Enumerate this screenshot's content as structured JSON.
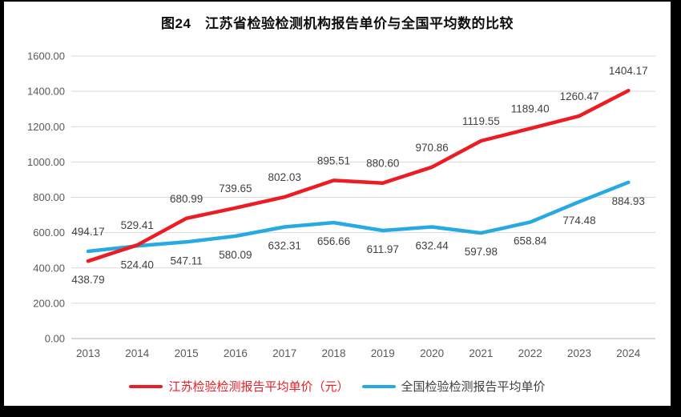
{
  "chart_data": {
    "type": "line",
    "title": "图24　江苏省检验检测机构报告单价与全国平均数的比较",
    "categories": [
      "2013",
      "2014",
      "2015",
      "2016",
      "2017",
      "2018",
      "2019",
      "2020",
      "2021",
      "2022",
      "2023",
      "2024"
    ],
    "series": [
      {
        "name": "江苏检验检测报告平均单价（元）",
        "color": "#ec1c24",
        "values": [
          438.79,
          529.41,
          680.99,
          739.65,
          802.03,
          895.51,
          880.6,
          970.86,
          1119.55,
          1189.4,
          1260.47,
          1404.17
        ],
        "label_sides": [
          "below",
          "above",
          "above",
          "above",
          "above",
          "above",
          "above",
          "above",
          "above",
          "above",
          "above",
          "above"
        ],
        "legend_text_color": "#ec1c24"
      },
      {
        "name": "全国检验检测报告平均单价",
        "color": "#27a9e1",
        "values": [
          494.17,
          524.4,
          547.11,
          580.09,
          632.31,
          656.66,
          611.97,
          632.44,
          597.98,
          658.84,
          774.48,
          884.93
        ],
        "label_sides": [
          "above",
          "below",
          "below",
          "below",
          "below",
          "below",
          "below",
          "below",
          "below",
          "below",
          "below",
          "below"
        ],
        "legend_text_color": "#404040"
      }
    ],
    "xlabel": "",
    "ylabel": "",
    "ylim": [
      0,
      1600
    ],
    "ytick_step": 200,
    "ytick_labels": [
      "0.00",
      "200.00",
      "400.00",
      "600.00",
      "800.00",
      "1000.00",
      "1200.00",
      "1400.00",
      "1600.00"
    ],
    "grid": true,
    "legend_position": "bottom"
  },
  "style": {
    "grid_color": "#d9d9d9",
    "axis_line_color": "#bfbfbf",
    "tick_text_color": "#595959",
    "data_label_color": "#404040",
    "line_width": 4.5
  }
}
